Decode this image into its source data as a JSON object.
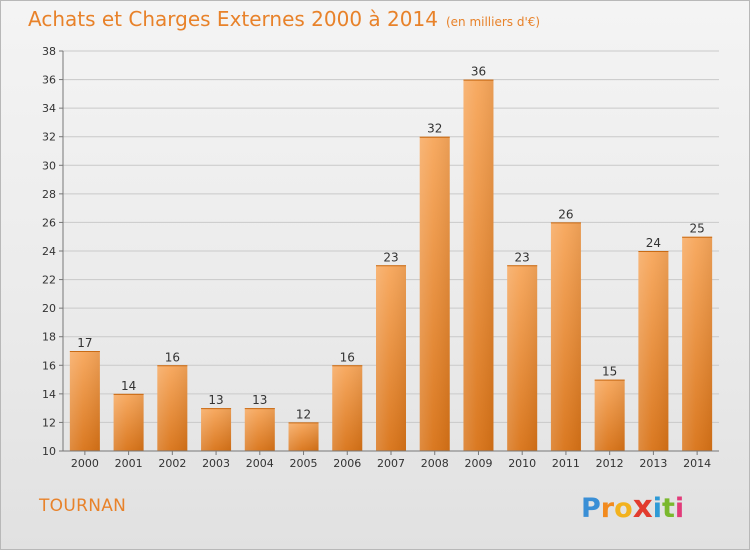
{
  "header": {
    "title": "Achats et Charges Externes 2000 à 2014",
    "subtitle": "(en milliers d'€)"
  },
  "footer": {
    "commune": "TOURNAN",
    "logo_letters": [
      "P",
      "r",
      "o",
      "x",
      "i",
      "t",
      "i"
    ],
    "logo_colors": [
      "#3a8fd6",
      "#f28a1e",
      "#f2b21e",
      "#e23b2e",
      "#2e9ad6",
      "#7ab82e",
      "#e23b7a"
    ]
  },
  "colors": {
    "bar_light": "#f7a65a",
    "bar_dark": "#d87216",
    "accent": "#e8822a",
    "grid": "#c9c9c9",
    "axis": "#777777"
  },
  "chart_data": {
    "type": "bar",
    "categories": [
      "2000",
      "2001",
      "2002",
      "2003",
      "2004",
      "2005",
      "2006",
      "2007",
      "2008",
      "2009",
      "2010",
      "2011",
      "2012",
      "2013",
      "2014"
    ],
    "values": [
      17,
      14,
      16,
      13,
      13,
      12,
      16,
      23,
      32,
      36,
      23,
      26,
      15,
      24,
      25
    ],
    "ylim": [
      10,
      38
    ],
    "yticks": [
      10,
      12,
      14,
      16,
      18,
      20,
      22,
      24,
      26,
      28,
      30,
      32,
      34,
      36,
      38
    ],
    "data_labels": [
      "17",
      "14",
      "16",
      "13",
      "13",
      "12",
      "16",
      "23",
      "32",
      "36",
      "23",
      "26",
      "15",
      "24",
      "25"
    ],
    "grid": true
  }
}
